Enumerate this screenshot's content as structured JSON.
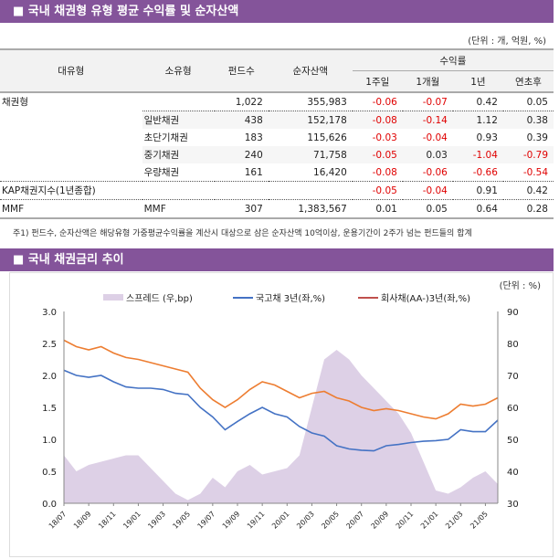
{
  "section1": {
    "title": "■ 국내 채권형 유형 평균 수익률 및 순자산액",
    "unit": "(단위 : 개, 억원, %)",
    "headers": {
      "major": "대유형",
      "minor": "소유형",
      "funds": "펀드수",
      "aum": "순자산액",
      "returns": "수익률",
      "w1": "1주일",
      "m1": "1개월",
      "y1": "1년",
      "ytd": "연초후"
    },
    "rows": [
      {
        "major": "채권형",
        "minor": "",
        "funds": "1,022",
        "aum": "355,983",
        "w1": "-0.06",
        "m1": "-0.07",
        "y1": "0.42",
        "ytd": "0.05"
      },
      {
        "major": "",
        "minor": "일반채권",
        "funds": "438",
        "aum": "152,178",
        "w1": "-0.08",
        "m1": "-0.14",
        "y1": "1.12",
        "ytd": "0.38"
      },
      {
        "major": "",
        "minor": "초단기채권",
        "funds": "183",
        "aum": "115,626",
        "w1": "-0.03",
        "m1": "-0.04",
        "y1": "0.93",
        "ytd": "0.39"
      },
      {
        "major": "",
        "minor": "중기채권",
        "funds": "240",
        "aum": "71,758",
        "w1": "-0.05",
        "m1": "0.03",
        "y1": "-1.04",
        "ytd": "-0.79"
      },
      {
        "major": "",
        "minor": "우량채권",
        "funds": "161",
        "aum": "16,420",
        "w1": "-0.08",
        "m1": "-0.06",
        "y1": "-0.66",
        "ytd": "-0.54"
      },
      {
        "major": "KAP채권지수(1년종합)",
        "minor": "",
        "funds": "",
        "aum": "",
        "w1": "-0.05",
        "m1": "-0.04",
        "y1": "0.91",
        "ytd": "0.42"
      },
      {
        "major": "MMF",
        "minor": "MMF",
        "funds": "307",
        "aum": "1,383,567",
        "w1": "0.01",
        "m1": "0.05",
        "y1": "0.64",
        "ytd": "0.28"
      }
    ],
    "note": "주1) 펀드수, 순자산액은 해당유형 가중평균수익률을 계산시 대상으로 삼은 순자산액 10억이상, 운용기간이 2주가 넘는 펀드들의 합계"
  },
  "section2": {
    "title": "■ 국내 채권금리 추이",
    "unit": "(단위 : %)"
  },
  "chart_data": {
    "type": "line",
    "grid": false,
    "legend": "top",
    "x": [
      "18/07",
      "18/08",
      "18/09",
      "18/10",
      "18/11",
      "18/12",
      "19/01",
      "19/02",
      "19/03",
      "19/04",
      "19/05",
      "19/06",
      "19/07",
      "19/08",
      "19/09",
      "19/10",
      "19/11",
      "19/12",
      "20/01",
      "20/02",
      "20/03",
      "20/04",
      "20/05",
      "20/06",
      "20/07",
      "20/08",
      "20/09",
      "20/10",
      "20/11",
      "20/12",
      "21/01",
      "21/02",
      "21/03",
      "21/04",
      "21/05",
      "21/06"
    ],
    "xticks": [
      "18/07",
      "18/09",
      "18/11",
      "19/01",
      "19/03",
      "19/05",
      "19/07",
      "19/09",
      "19/11",
      "20/01",
      "20/03",
      "20/05",
      "20/07",
      "20/09",
      "20/11",
      "21/01",
      "21/03",
      "21/05"
    ],
    "ylim": [
      0,
      3.0
    ],
    "yticks": [
      "0.0",
      "0.5",
      "1.0",
      "1.5",
      "2.0",
      "2.5",
      "3.0"
    ],
    "y2lim": [
      30,
      90
    ],
    "y2ticks": [
      "30",
      "40",
      "50",
      "60",
      "70",
      "80",
      "90"
    ],
    "series": [
      {
        "name": "스프레드 (우,bp)",
        "type": "area",
        "axis": "right",
        "color": "#ddd0e6",
        "values": [
          45,
          40,
          42,
          43,
          44,
          45,
          45,
          41,
          37,
          33,
          31,
          33,
          38,
          35,
          40,
          42,
          39,
          40,
          41,
          45,
          60,
          75,
          78,
          75,
          70,
          66,
          62,
          58,
          52,
          43,
          34,
          33,
          35,
          38,
          40,
          36
        ]
      },
      {
        "name": "국고채 3년(좌,%)",
        "type": "line",
        "axis": "left",
        "color": "#4472c4",
        "values": [
          2.08,
          2.0,
          1.97,
          2.0,
          1.9,
          1.82,
          1.8,
          1.8,
          1.78,
          1.72,
          1.7,
          1.5,
          1.35,
          1.15,
          1.28,
          1.4,
          1.5,
          1.4,
          1.35,
          1.2,
          1.1,
          1.05,
          0.9,
          0.85,
          0.83,
          0.82,
          0.9,
          0.92,
          0.95,
          0.97,
          0.98,
          1.0,
          1.15,
          1.12,
          1.12,
          1.3
        ]
      },
      {
        "name": "회사채(AA-)3년(좌,%)",
        "type": "line",
        "axis": "left",
        "color": "#ed7d31",
        "values": [
          2.55,
          2.45,
          2.4,
          2.45,
          2.35,
          2.28,
          2.25,
          2.2,
          2.15,
          2.1,
          2.05,
          1.8,
          1.62,
          1.5,
          1.62,
          1.78,
          1.9,
          1.85,
          1.75,
          1.65,
          1.72,
          1.75,
          1.65,
          1.6,
          1.5,
          1.45,
          1.48,
          1.45,
          1.4,
          1.35,
          1.32,
          1.4,
          1.55,
          1.52,
          1.55,
          1.65
        ]
      }
    ]
  }
}
